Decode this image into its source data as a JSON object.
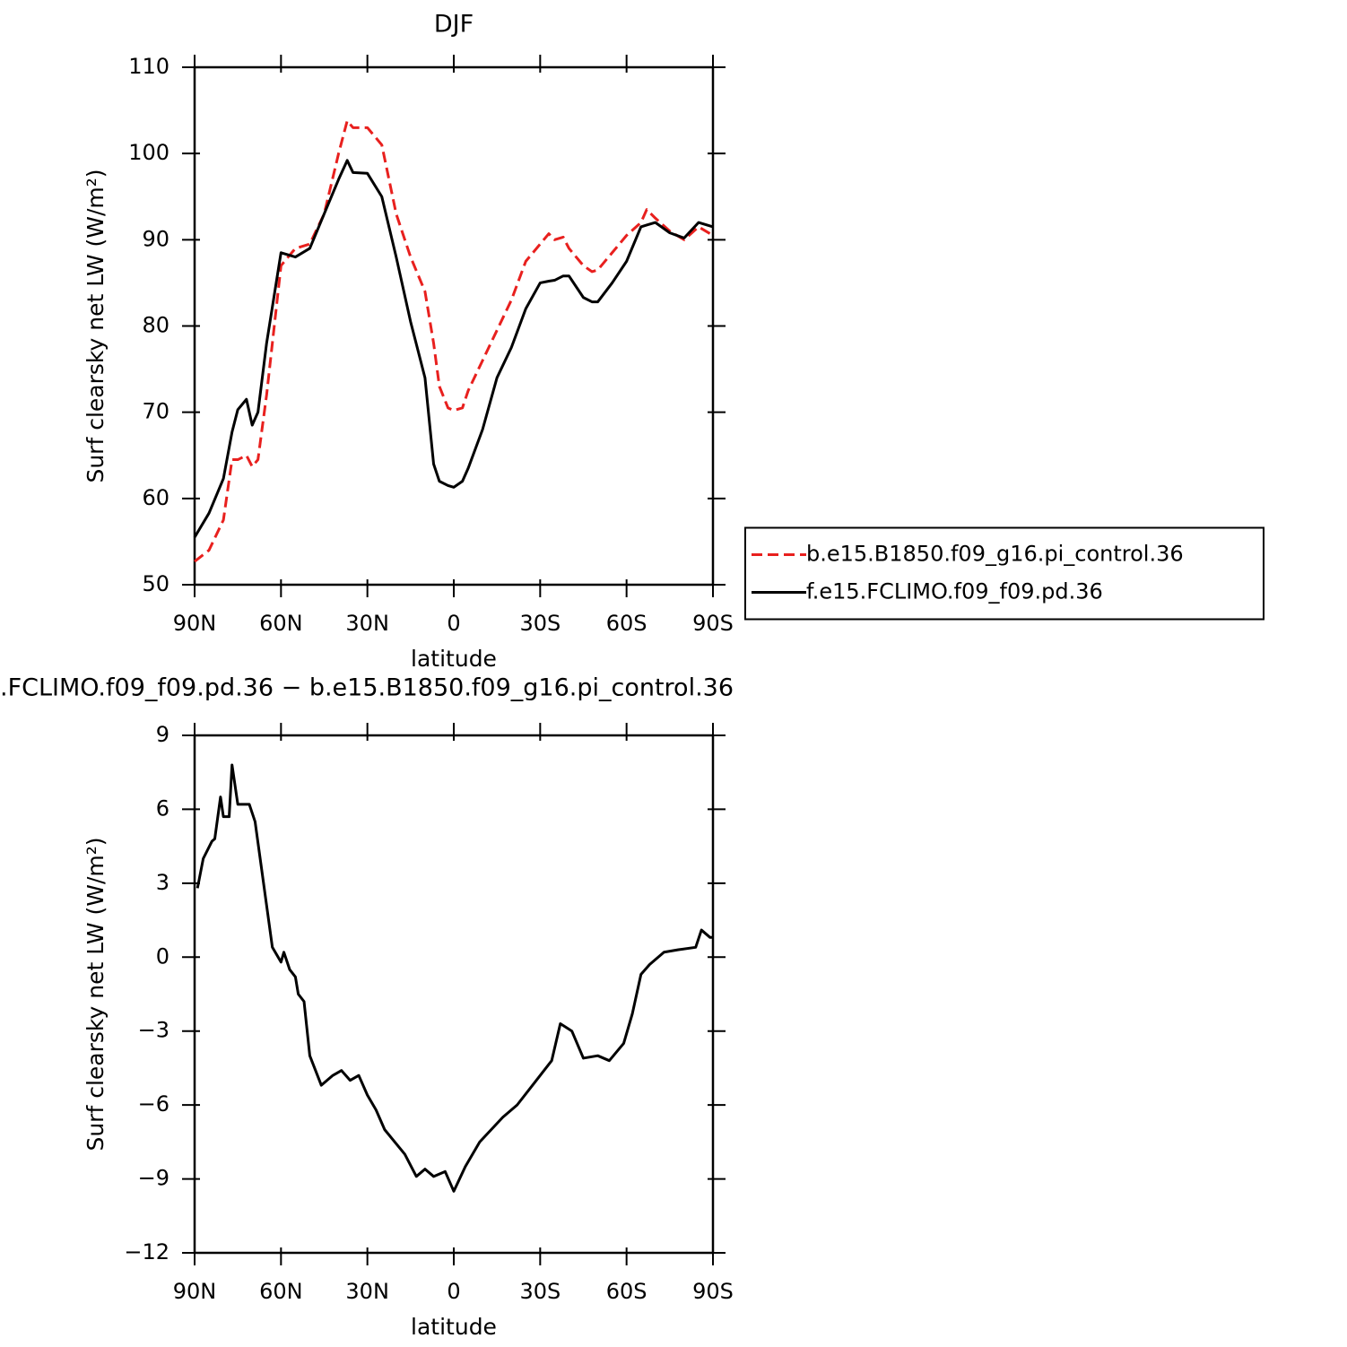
{
  "chart_data": [
    {
      "type": "line",
      "title": "DJF",
      "xlabel": "latitude",
      "ylabel": "Surf clearsky net LW (W/m²)",
      "x": [
        90,
        85,
        80,
        77,
        75,
        72,
        70,
        68,
        65,
        60,
        55,
        50,
        45,
        40,
        37,
        35,
        30,
        25,
        20,
        15,
        10,
        7,
        5,
        2,
        0,
        -3,
        -5,
        -10,
        -15,
        -20,
        -25,
        -30,
        -33,
        -35,
        -38,
        -40,
        -45,
        -48,
        -50,
        -55,
        -60,
        -65,
        -67,
        -70,
        -75,
        -80,
        -85,
        -90
      ],
      "xlim": [
        90,
        -90
      ],
      "xticks": [
        {
          "value": 90,
          "label": "90N"
        },
        {
          "value": 60,
          "label": "60N"
        },
        {
          "value": 30,
          "label": "30N"
        },
        0,
        {
          "value": -30,
          "label": "30S"
        },
        {
          "value": -60,
          "label": "60S"
        },
        {
          "value": -90,
          "label": "90S"
        }
      ],
      "ylim": [
        50,
        110
      ],
      "yticks": [
        50,
        60,
        70,
        80,
        90,
        100,
        110
      ],
      "legend": "right",
      "series": [
        {
          "name": "b.e15.B1850.f09_g16.pi_control.36",
          "color": "#e8201e",
          "dash": true,
          "values": [
            52.7,
            54,
            57.5,
            64.5,
            64.5,
            65,
            63.7,
            64.5,
            72,
            87,
            89,
            89.5,
            93,
            100,
            103.8,
            103,
            103,
            101,
            93,
            88,
            84,
            78,
            73,
            70.5,
            70.2,
            70.5,
            72.5,
            76,
            79.5,
            83,
            87.5,
            89.5,
            90.7,
            90,
            90.3,
            89,
            87,
            86.3,
            86.5,
            88.5,
            90.5,
            92,
            93.5,
            92.5,
            91,
            90,
            91.5,
            90.5
          ]
        },
        {
          "name": "f.e15.FCLIMO.f09_f09.pd.36",
          "color": "#000000",
          "dash": false,
          "values": [
            55.5,
            58.3,
            62.3,
            67.7,
            70.3,
            71.5,
            68.5,
            70,
            78,
            88.5,
            88,
            89,
            93,
            97,
            99.2,
            97.8,
            97.7,
            95,
            88,
            80.5,
            74,
            64,
            62,
            61.5,
            61.3,
            62,
            63.5,
            68,
            74,
            77.5,
            82,
            85,
            85.2,
            85.3,
            85.8,
            85.8,
            83.3,
            82.8,
            82.8,
            85,
            87.5,
            91.5,
            91.7,
            92,
            90.8,
            90.2,
            92,
            91.5
          ]
        }
      ]
    },
    {
      "type": "line",
      "title": ".FCLIMO.f09_f09.pd.36 − b.e15.B1850.f09_g16.pi_control.36",
      "xlabel": "latitude",
      "ylabel": "Surf clearsky net LW (W/m²)",
      "x": [
        89,
        87,
        84,
        83,
        81,
        80,
        78,
        77,
        75,
        71,
        69,
        67,
        63,
        60,
        59,
        57,
        55,
        54,
        52,
        50,
        46,
        42,
        39,
        36,
        33,
        30,
        27,
        24,
        17,
        13,
        10,
        7,
        3,
        0,
        -4,
        -9,
        -13,
        -17,
        -22,
        -28,
        -34,
        -37,
        -41,
        -45,
        -50,
        -54,
        -59,
        -62,
        -65,
        -68,
        -73,
        -78,
        -84,
        -86,
        -89,
        -90
      ],
      "values": [
        2.8,
        4,
        4.7,
        4.8,
        6.5,
        5.7,
        5.7,
        7.8,
        6.2,
        6.2,
        5.5,
        3.8,
        0.4,
        -0.2,
        0.2,
        -0.5,
        -0.8,
        -1.5,
        -1.8,
        -4,
        -5.2,
        -4.8,
        -4.6,
        -5,
        -4.8,
        -5.6,
        -6.2,
        -7,
        -8,
        -8.9,
        -8.6,
        -8.9,
        -8.7,
        -9.5,
        -8.5,
        -7.5,
        -7,
        -6.5,
        -6,
        -5.1,
        -4.2,
        -2.7,
        -3,
        -4.1,
        -4,
        -4.2,
        -3.5,
        -2.3,
        -0.7,
        -0.3,
        0.2,
        0.3,
        0.4,
        1.1,
        0.8,
        0.8
      ],
      "color": "#000000",
      "xlim": [
        90,
        -90
      ],
      "xticks": [
        {
          "value": 90,
          "label": "90N"
        },
        {
          "value": 60,
          "label": "60N"
        },
        {
          "value": 30,
          "label": "30N"
        },
        0,
        {
          "value": -30,
          "label": "30S"
        },
        {
          "value": -60,
          "label": "60S"
        },
        {
          "value": -90,
          "label": "90S"
        }
      ],
      "ylim": [
        -12,
        9
      ],
      "yticks": [
        {
          "value": -12,
          "label": "−12"
        },
        {
          "value": -9,
          "label": "−9"
        },
        {
          "value": -6,
          "label": "−6"
        },
        {
          "value": -3,
          "label": "−3"
        },
        0,
        3,
        6,
        9
      ]
    }
  ]
}
